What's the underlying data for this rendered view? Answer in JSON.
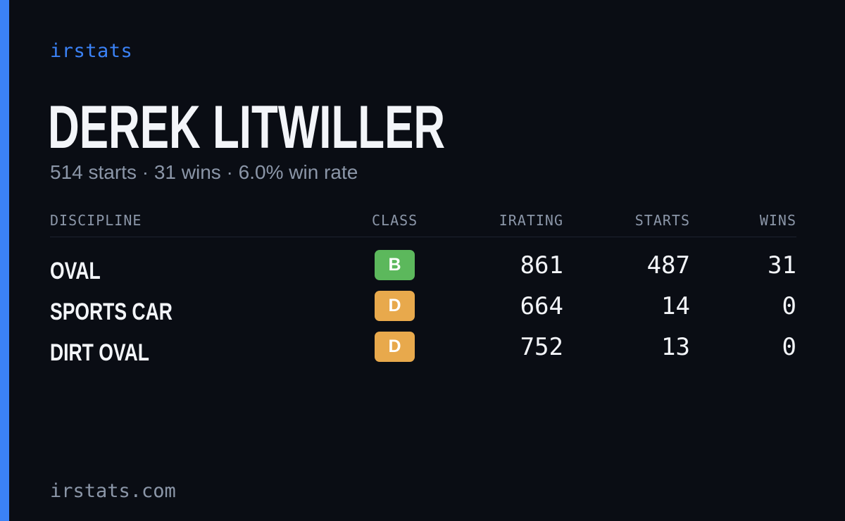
{
  "brand": "irstats",
  "driver": {
    "name": "DEREK LITWILLER",
    "summary": "514 starts · 31 wins · 6.0% win rate"
  },
  "table": {
    "headers": {
      "discipline": "DISCIPLINE",
      "class": "CLASS",
      "irating": "IRATING",
      "starts": "STARTS",
      "wins": "WINS"
    },
    "rows": [
      {
        "discipline": "OVAL",
        "class": "B",
        "class_color": "#5cb85c",
        "irating": "861",
        "starts": "487",
        "wins": "31"
      },
      {
        "discipline": "SPORTS CAR",
        "class": "D",
        "class_color": "#e8a94c",
        "irating": "664",
        "starts": "14",
        "wins": "0"
      },
      {
        "discipline": "DIRT OVAL",
        "class": "D",
        "class_color": "#e8a94c",
        "irating": "752",
        "starts": "13",
        "wins": "0"
      }
    ]
  },
  "footer": "irstats.com",
  "colors": {
    "accent": "#3b82f6",
    "background": "#0a0d14"
  }
}
